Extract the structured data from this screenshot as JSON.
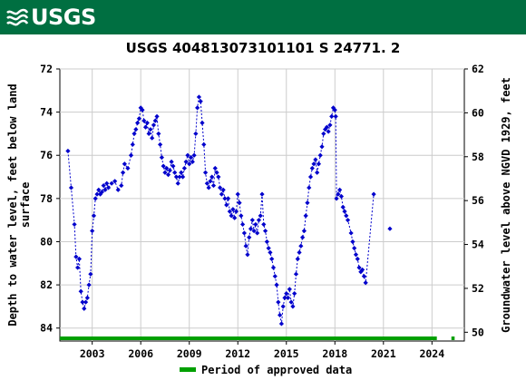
{
  "header": {
    "logo_text": "USGS",
    "logo_icon": "usgs-wave-icon",
    "background": "#006f41"
  },
  "chart_data": {
    "type": "scatter",
    "title": "USGS 404813073101101 S 24771. 2",
    "ylabel_left": [
      "Depth to water level, feet below land",
      "surface"
    ],
    "ylabel_right": "Groundwater level above NGVD 1929, feet",
    "xlabel": "",
    "xlim": [
      2001.0,
      2026.0
    ],
    "ylim_left": [
      84.6,
      72.0
    ],
    "ylim_right": [
      49.6,
      62.0
    ],
    "x_ticks": [
      2003,
      2006,
      2009,
      2012,
      2015,
      2018,
      2021,
      2024
    ],
    "y_ticks_left": [
      72,
      74,
      76,
      78,
      80,
      82,
      84
    ],
    "y_ticks_right": [
      50,
      52,
      54,
      56,
      58,
      60,
      62
    ],
    "grid": true,
    "series_color": "#0000cc",
    "approved_color": "#00a000",
    "legend": {
      "label": "Period of approved data",
      "placement": "bottom-center"
    },
    "series": [
      {
        "values": [
          [
            2001.5,
            75.8
          ],
          [
            2001.7,
            77.5
          ],
          [
            2001.9,
            79.2
          ],
          [
            2002.0,
            80.7
          ],
          [
            2002.1,
            81.2
          ],
          [
            2002.2,
            80.8
          ],
          [
            2002.3,
            82.3
          ],
          [
            2002.4,
            82.8
          ],
          [
            2002.5,
            83.1
          ],
          [
            2002.6,
            82.8
          ],
          [
            2002.7,
            82.6
          ],
          [
            2002.8,
            82.0
          ],
          [
            2002.9,
            81.5
          ],
          [
            2003.0,
            79.5
          ],
          [
            2003.1,
            78.8
          ],
          [
            2003.2,
            78.0
          ],
          [
            2003.3,
            77.8
          ],
          [
            2003.4,
            77.6
          ],
          [
            2003.5,
            77.8
          ],
          [
            2003.6,
            77.7
          ],
          [
            2003.7,
            77.4
          ],
          [
            2003.8,
            77.6
          ],
          [
            2003.9,
            77.3
          ],
          [
            2004.0,
            77.5
          ],
          [
            2004.2,
            77.3
          ],
          [
            2004.4,
            77.2
          ],
          [
            2004.6,
            77.6
          ],
          [
            2004.8,
            77.4
          ],
          [
            2004.9,
            76.8
          ],
          [
            2005.0,
            76.4
          ],
          [
            2005.2,
            76.6
          ],
          [
            2005.4,
            76.0
          ],
          [
            2005.5,
            75.5
          ],
          [
            2005.6,
            75.0
          ],
          [
            2005.7,
            74.8
          ],
          [
            2005.8,
            74.5
          ],
          [
            2005.9,
            74.3
          ],
          [
            2006.0,
            73.8
          ],
          [
            2006.1,
            73.9
          ],
          [
            2006.2,
            74.4
          ],
          [
            2006.3,
            74.7
          ],
          [
            2006.4,
            74.5
          ],
          [
            2006.5,
            75.0
          ],
          [
            2006.6,
            74.8
          ],
          [
            2006.7,
            75.2
          ],
          [
            2006.8,
            74.6
          ],
          [
            2006.9,
            74.4
          ],
          [
            2007.0,
            74.2
          ],
          [
            2007.1,
            75.0
          ],
          [
            2007.2,
            75.5
          ],
          [
            2007.3,
            76.1
          ],
          [
            2007.4,
            76.5
          ],
          [
            2007.5,
            76.8
          ],
          [
            2007.6,
            76.6
          ],
          [
            2007.7,
            76.9
          ],
          [
            2007.8,
            76.7
          ],
          [
            2007.9,
            76.3
          ],
          [
            2008.0,
            76.5
          ],
          [
            2008.1,
            76.8
          ],
          [
            2008.2,
            77.0
          ],
          [
            2008.3,
            77.3
          ],
          [
            2008.4,
            77.0
          ],
          [
            2008.5,
            76.8
          ],
          [
            2008.6,
            77.0
          ],
          [
            2008.7,
            76.6
          ],
          [
            2008.8,
            76.3
          ],
          [
            2008.9,
            76.0
          ],
          [
            2009.0,
            76.4
          ],
          [
            2009.1,
            76.1
          ],
          [
            2009.2,
            76.3
          ],
          [
            2009.3,
            76.0
          ],
          [
            2009.4,
            75.0
          ],
          [
            2009.5,
            73.8
          ],
          [
            2009.6,
            73.3
          ],
          [
            2009.7,
            73.5
          ],
          [
            2009.8,
            74.5
          ],
          [
            2009.9,
            75.5
          ],
          [
            2010.0,
            76.8
          ],
          [
            2010.1,
            77.3
          ],
          [
            2010.2,
            77.5
          ],
          [
            2010.3,
            77.2
          ],
          [
            2010.4,
            77.0
          ],
          [
            2010.5,
            77.4
          ],
          [
            2010.6,
            76.6
          ],
          [
            2010.7,
            76.8
          ],
          [
            2010.8,
            77.0
          ],
          [
            2010.9,
            77.5
          ],
          [
            2011.0,
            77.8
          ],
          [
            2011.1,
            77.6
          ],
          [
            2011.2,
            78.0
          ],
          [
            2011.3,
            78.3
          ],
          [
            2011.4,
            78.0
          ],
          [
            2011.5,
            78.6
          ],
          [
            2011.6,
            78.8
          ],
          [
            2011.7,
            78.5
          ],
          [
            2011.8,
            78.9
          ],
          [
            2011.9,
            78.6
          ],
          [
            2012.0,
            77.8
          ],
          [
            2012.1,
            78.2
          ],
          [
            2012.2,
            78.8
          ],
          [
            2012.3,
            79.2
          ],
          [
            2012.4,
            79.6
          ],
          [
            2012.5,
            80.2
          ],
          [
            2012.6,
            80.6
          ],
          [
            2012.7,
            79.8
          ],
          [
            2012.8,
            79.4
          ],
          [
            2012.9,
            79.0
          ],
          [
            2013.0,
            79.5
          ],
          [
            2013.1,
            79.2
          ],
          [
            2013.2,
            79.6
          ],
          [
            2013.3,
            79.0
          ],
          [
            2013.4,
            78.8
          ],
          [
            2013.5,
            77.8
          ],
          [
            2013.6,
            79.2
          ],
          [
            2013.7,
            79.5
          ],
          [
            2013.8,
            80.0
          ],
          [
            2013.9,
            80.3
          ],
          [
            2014.0,
            80.5
          ],
          [
            2014.1,
            80.8
          ],
          [
            2014.2,
            81.2
          ],
          [
            2014.3,
            81.6
          ],
          [
            2014.4,
            82.0
          ],
          [
            2014.5,
            82.8
          ],
          [
            2014.6,
            83.4
          ],
          [
            2014.7,
            83.8
          ],
          [
            2014.8,
            83.0
          ],
          [
            2014.9,
            82.6
          ],
          [
            2015.0,
            82.4
          ],
          [
            2015.1,
            82.6
          ],
          [
            2015.2,
            82.2
          ],
          [
            2015.3,
            82.8
          ],
          [
            2015.4,
            83.0
          ],
          [
            2015.5,
            82.4
          ],
          [
            2015.6,
            81.5
          ],
          [
            2015.7,
            80.8
          ],
          [
            2015.8,
            80.5
          ],
          [
            2015.9,
            80.2
          ],
          [
            2016.0,
            79.8
          ],
          [
            2016.1,
            79.5
          ],
          [
            2016.2,
            78.8
          ],
          [
            2016.3,
            78.2
          ],
          [
            2016.4,
            77.5
          ],
          [
            2016.5,
            77.0
          ],
          [
            2016.6,
            76.6
          ],
          [
            2016.7,
            76.4
          ],
          [
            2016.8,
            76.2
          ],
          [
            2016.9,
            76.8
          ],
          [
            2017.0,
            76.4
          ],
          [
            2017.1,
            76.0
          ],
          [
            2017.2,
            75.6
          ],
          [
            2017.3,
            75.0
          ],
          [
            2017.4,
            74.8
          ],
          [
            2017.5,
            74.7
          ],
          [
            2017.6,
            74.9
          ],
          [
            2017.7,
            74.6
          ],
          [
            2017.8,
            74.2
          ],
          [
            2017.9,
            73.8
          ],
          [
            2018.0,
            73.9
          ],
          [
            2018.05,
            74.2
          ],
          [
            2018.1,
            78.0
          ],
          [
            2018.2,
            77.8
          ],
          [
            2018.3,
            77.6
          ],
          [
            2018.4,
            77.9
          ],
          [
            2018.5,
            78.4
          ],
          [
            2018.6,
            78.6
          ],
          [
            2018.7,
            78.8
          ],
          [
            2018.8,
            79.0
          ],
          [
            2019.0,
            79.6
          ],
          [
            2019.1,
            80.0
          ],
          [
            2019.2,
            80.3
          ],
          [
            2019.3,
            80.6
          ],
          [
            2019.4,
            80.8
          ],
          [
            2019.5,
            81.2
          ],
          [
            2019.6,
            81.4
          ],
          [
            2019.7,
            81.3
          ],
          [
            2019.8,
            81.6
          ],
          [
            2019.9,
            81.9
          ],
          [
            2020.4,
            77.8
          ],
          [
            2021.4,
            79.4
          ]
        ]
      }
    ],
    "approved_periods": [
      [
        2001.0,
        2024.3
      ],
      [
        2025.2,
        2025.4
      ]
    ]
  }
}
